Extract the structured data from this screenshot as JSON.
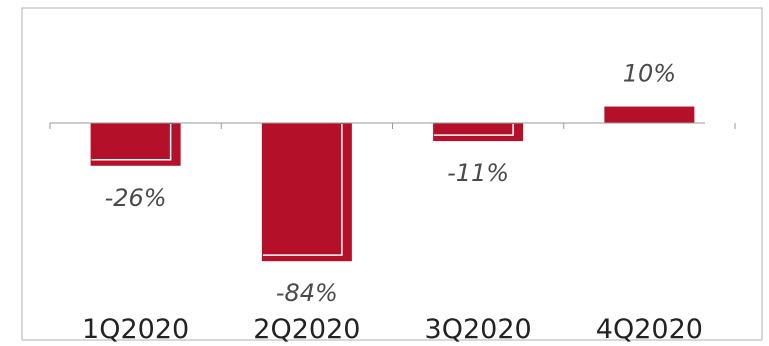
{
  "chart_data": {
    "type": "bar",
    "categories": [
      "1Q2020",
      "2Q2020",
      "3Q2020",
      "4Q2020"
    ],
    "values": [
      -26,
      -84,
      -11,
      10
    ],
    "data_labels": [
      "-26%",
      "-84%",
      "-11%",
      "10%"
    ],
    "title": "",
    "xlabel": "",
    "ylabel": "",
    "ylim": [
      -100,
      20
    ],
    "grid": false,
    "legend": "none",
    "colors": {
      "bar": "#b5102a",
      "bar_outline": "#ffffff",
      "axis": "#9a9a9a",
      "frame": "#b0b0b0"
    }
  }
}
